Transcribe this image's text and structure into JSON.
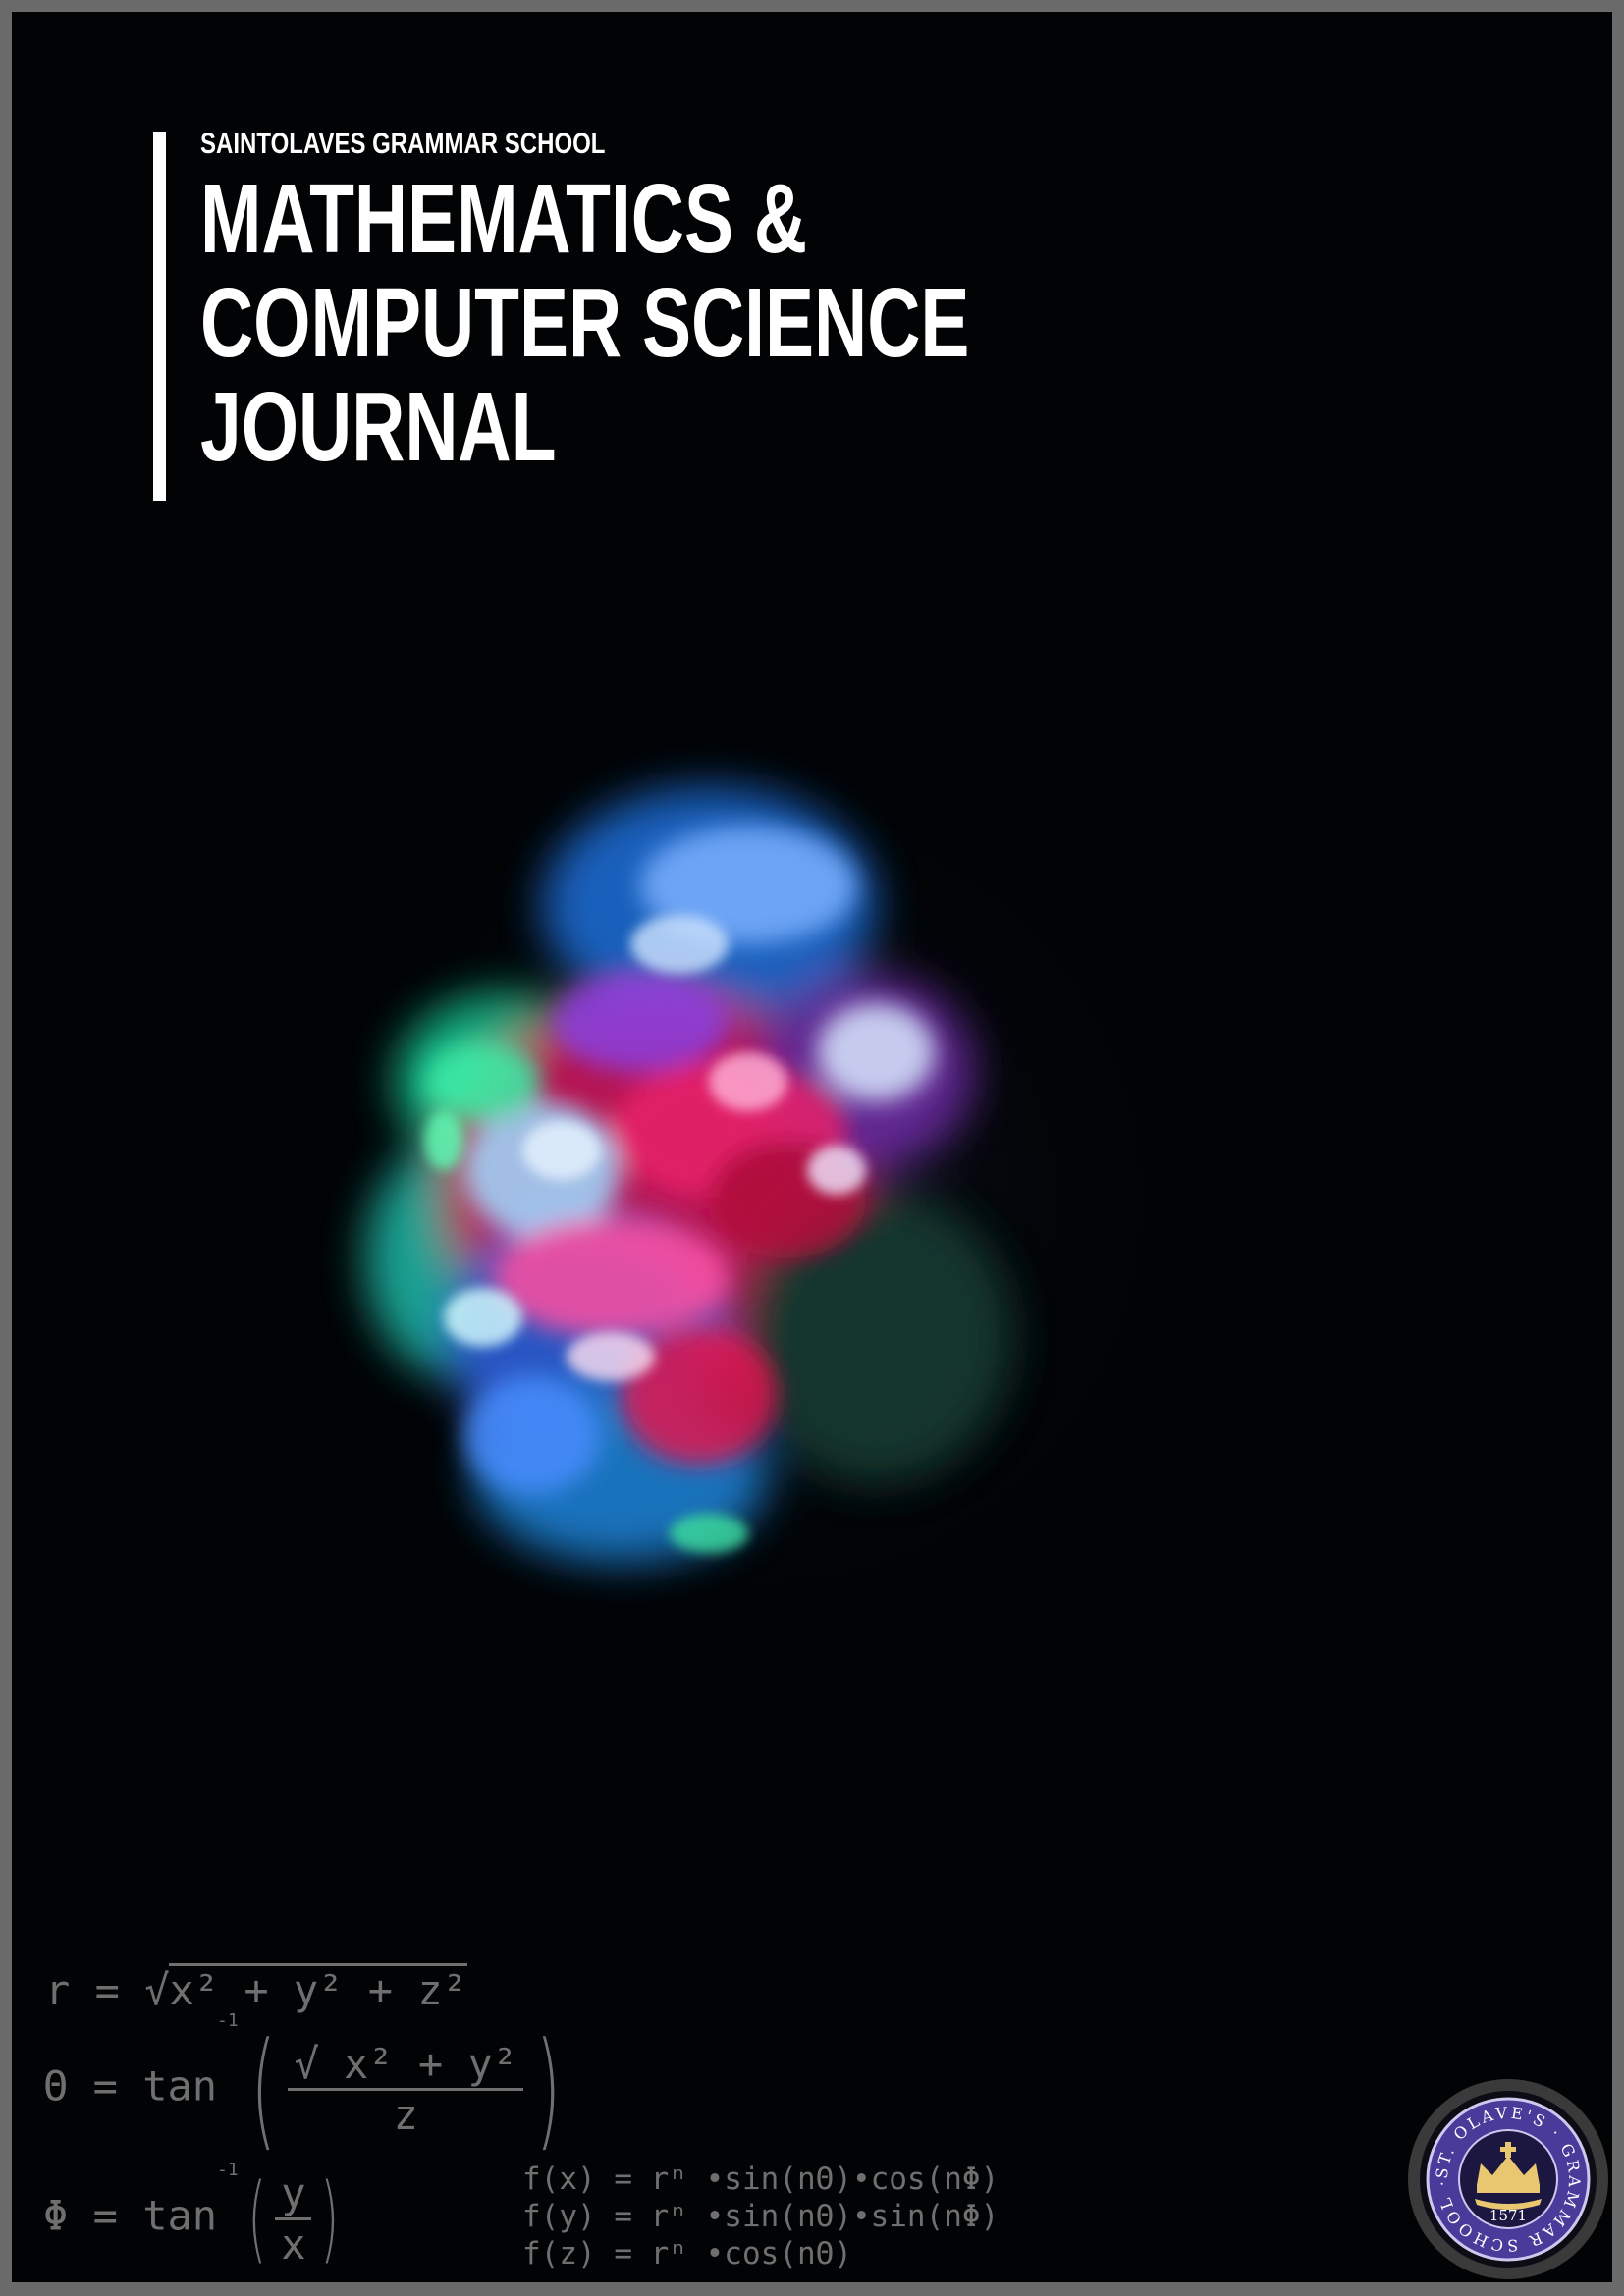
{
  "header": {
    "school": "SAINTOLAVES GRAMMAR SCHOOL",
    "title_lines": [
      "MATHEMATICS &",
      "COMPUTER SCIENCE",
      "JOURNAL"
    ]
  },
  "equations": {
    "r": {
      "lhs": "r",
      "op": "=",
      "sqrt": "x² + y² + z²"
    },
    "theta": {
      "lhs": "Θ",
      "op": "=",
      "fn": "tan",
      "exp": "-1",
      "num": "√ x² + y²",
      "den": "z"
    },
    "phi": {
      "lhs": "Φ",
      "op": "=",
      "fn": "tan",
      "exp": "-1",
      "num": "y",
      "den": "x"
    },
    "f_lines": [
      "f(x) = rⁿ •sin(nΘ)•cos(nΦ)",
      "f(y) = rⁿ •sin(nΘ)•sin(nΦ)",
      "f(z) = rⁿ •cos(nΘ)"
    ]
  },
  "crest": {
    "ring_text": "ST. OLAVE'S · GRAMMAR SCHOOL ·",
    "year": "1571"
  },
  "colors": {
    "background": "#010305",
    "frame": "#6a6a6a",
    "equation_gray": "#6f6f6f",
    "crest_purple": "#4a3a9a",
    "crest_gold": "#e8c770"
  }
}
